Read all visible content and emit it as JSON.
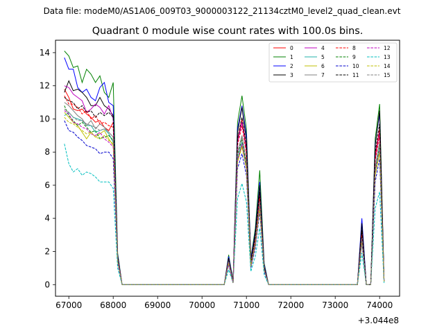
{
  "suptitle": "Data file: modeM0/AS1A06_009T03_9000003122_21134cztM0_level2_quad_clean.evt",
  "chart_data": {
    "type": "line",
    "title": "Quadrant 0 module wise count rates with 100.0s bins.",
    "xlabel": "",
    "ylabel": "",
    "x_offset_label": "+3.044e8",
    "x_offset": 304400000,
    "xlim": [
      66700,
      74450
    ],
    "ylim": [
      -0.7,
      14.75
    ],
    "xticks": [
      67000,
      68000,
      69000,
      70000,
      71000,
      72000,
      73000,
      74000
    ],
    "yticks": [
      0,
      2,
      4,
      6,
      8,
      10,
      12,
      14
    ],
    "grid": false,
    "legend_position": "top-right",
    "x": [
      66900,
      67000,
      67100,
      67200,
      67300,
      67400,
      67500,
      67600,
      67700,
      67800,
      67900,
      68000,
      68100,
      68200,
      68300,
      68400,
      68500,
      68600,
      68700,
      68800,
      68900,
      69000,
      69100,
      69200,
      69300,
      69400,
      69500,
      69600,
      69700,
      69800,
      69900,
      70000,
      70100,
      70200,
      70300,
      70400,
      70500,
      70600,
      70700,
      70800,
      70900,
      71000,
      71100,
      71200,
      71300,
      71400,
      71500,
      71600,
      71700,
      71800,
      71900,
      72000,
      72100,
      72200,
      72300,
      72400,
      72500,
      72600,
      72700,
      72800,
      72900,
      73000,
      73100,
      73200,
      73300,
      73400,
      73500,
      73600,
      73700,
      73800,
      73900,
      74000,
      74100
    ],
    "series": [
      {
        "name": "0",
        "color": "#ff0000",
        "dash": "solid",
        "values": [
          11.8,
          11.3,
          10.6,
          10.5,
          10.6,
          10.3,
          10.1,
          9.8,
          9.9,
          9.5,
          9.3,
          9.8,
          1.6,
          0,
          0,
          0,
          0,
          0,
          0,
          0,
          0,
          0,
          0,
          0,
          0,
          0,
          0,
          0,
          0,
          0,
          0,
          0,
          0,
          0,
          0,
          0,
          0,
          1.5,
          0.1,
          8.8,
          10.0,
          8.2,
          1.3,
          2.8,
          5.6,
          1.0,
          0,
          0,
          0,
          0,
          0,
          0,
          0,
          0,
          0,
          0,
          0,
          0,
          0,
          0,
          0,
          0,
          0,
          0,
          0,
          0,
          0,
          3.2,
          0,
          0,
          7.8,
          9.4,
          0.2
        ]
      },
      {
        "name": "1",
        "color": "#008000",
        "dash": "solid",
        "values": [
          14.1,
          13.8,
          13.1,
          13.2,
          12.2,
          13.0,
          12.7,
          12.2,
          12.6,
          11.6,
          11.3,
          12.2,
          1.9,
          0,
          0,
          0,
          0,
          0,
          0,
          0,
          0,
          0,
          0,
          0,
          0,
          0,
          0,
          0,
          0,
          0,
          0,
          0,
          0,
          0,
          0,
          0,
          0,
          1.8,
          0.2,
          9.8,
          11.4,
          9.4,
          1.6,
          3.4,
          6.9,
          1.3,
          0,
          0,
          0,
          0,
          0,
          0,
          0,
          0,
          0,
          0,
          0,
          0,
          0,
          0,
          0,
          0,
          0,
          0,
          0,
          0,
          0,
          3.8,
          0,
          0,
          8.8,
          10.9,
          0.3
        ]
      },
      {
        "name": "2",
        "color": "#0000ff",
        "dash": "solid",
        "values": [
          13.7,
          13.0,
          13.0,
          11.9,
          11.6,
          11.8,
          11.3,
          11.1,
          11.9,
          12.2,
          11.0,
          10.8,
          1.8,
          0,
          0,
          0,
          0,
          0,
          0,
          0,
          0,
          0,
          0,
          0,
          0,
          0,
          0,
          0,
          0,
          0,
          0,
          0,
          0,
          0,
          0,
          0,
          0,
          1.7,
          0.2,
          9.4,
          10.8,
          9.0,
          1.5,
          3.2,
          6.2,
          1.2,
          0,
          0,
          0,
          0,
          0,
          0,
          0,
          0,
          0,
          0,
          0,
          0,
          0,
          0,
          0,
          0,
          0,
          0,
          0,
          0,
          0,
          4.0,
          0,
          0,
          8.5,
          10.3,
          0.3
        ]
      },
      {
        "name": "3",
        "color": "#000000",
        "dash": "solid",
        "values": [
          11.6,
          12.3,
          11.7,
          11.8,
          11.6,
          11.3,
          10.8,
          10.8,
          11.3,
          10.8,
          10.6,
          10.2,
          1.7,
          0,
          0,
          0,
          0,
          0,
          0,
          0,
          0,
          0,
          0,
          0,
          0,
          0,
          0,
          0,
          0,
          0,
          0,
          0,
          0,
          0,
          0,
          0,
          0,
          1.6,
          0.2,
          9.2,
          10.7,
          8.7,
          1.4,
          3.1,
          6.0,
          1.1,
          0,
          0,
          0,
          0,
          0,
          0,
          0,
          0,
          0,
          0,
          0,
          0,
          0,
          0,
          0,
          0,
          0,
          0,
          0,
          0,
          0,
          3.7,
          0,
          0,
          8.4,
          10.5,
          0.2
        ]
      },
      {
        "name": "4",
        "color": "#bf00bf",
        "dash": "solid",
        "values": [
          12.0,
          11.9,
          11.5,
          11.3,
          11.1,
          10.4,
          10.6,
          10.9,
          10.7,
          10.3,
          10.8,
          10.0,
          1.6,
          0,
          0,
          0,
          0,
          0,
          0,
          0,
          0,
          0,
          0,
          0,
          0,
          0,
          0,
          0,
          0,
          0,
          0,
          0,
          0,
          0,
          0,
          0,
          0,
          1.5,
          0.1,
          8.6,
          9.8,
          8.1,
          1.3,
          2.8,
          5.4,
          1.0,
          0,
          0,
          0,
          0,
          0,
          0,
          0,
          0,
          0,
          0,
          0,
          0,
          0,
          0,
          0,
          0,
          0,
          0,
          0,
          0,
          0,
          3.1,
          0,
          0,
          7.6,
          9.2,
          0.2
        ]
      },
      {
        "name": "5",
        "color": "#20b2aa",
        "dash": "solid",
        "values": [
          10.2,
          10.4,
          10.1,
          10.0,
          9.9,
          9.6,
          9.6,
          9.2,
          9.3,
          9.4,
          9.1,
          8.6,
          1.4,
          0,
          0,
          0,
          0,
          0,
          0,
          0,
          0,
          0,
          0,
          0,
          0,
          0,
          0,
          0,
          0,
          0,
          0,
          0,
          0,
          0,
          0,
          0,
          0,
          1.3,
          0.1,
          7.6,
          8.6,
          7.1,
          1.1,
          2.5,
          4.8,
          0.9,
          0,
          0,
          0,
          0,
          0,
          0,
          0,
          0,
          0,
          0,
          0,
          0,
          0,
          0,
          0,
          0,
          0,
          0,
          0,
          0,
          0,
          2.7,
          0,
          0,
          6.8,
          8.2,
          0.2
        ]
      },
      {
        "name": "6",
        "color": "#bfbf00",
        "dash": "solid",
        "values": [
          10.4,
          10.1,
          9.8,
          9.6,
          9.2,
          8.8,
          9.2,
          8.9,
          9.1,
          9.3,
          8.8,
          8.4,
          1.4,
          0,
          0,
          0,
          0,
          0,
          0,
          0,
          0,
          0,
          0,
          0,
          0,
          0,
          0,
          0,
          0,
          0,
          0,
          0,
          0,
          0,
          0,
          0,
          0,
          1.3,
          0.1,
          7.4,
          8.4,
          7.0,
          1.1,
          2.4,
          4.7,
          0.9,
          0,
          0,
          0,
          0,
          0,
          0,
          0,
          0,
          0,
          0,
          0,
          0,
          0,
          0,
          0,
          0,
          0,
          0,
          0,
          0,
          0,
          2.6,
          0,
          0,
          6.6,
          8.0,
          0.2
        ]
      },
      {
        "name": "7",
        "color": "#808080",
        "dash": "solid",
        "values": [
          11.0,
          10.8,
          10.5,
          10.2,
          10.0,
          9.6,
          9.9,
          9.4,
          9.7,
          9.5,
          9.2,
          8.9,
          1.5,
          0,
          0,
          0,
          0,
          0,
          0,
          0,
          0,
          0,
          0,
          0,
          0,
          0,
          0,
          0,
          0,
          0,
          0,
          0,
          0,
          0,
          0,
          0,
          0,
          1.4,
          0.1,
          8.0,
          9.0,
          7.5,
          1.2,
          2.6,
          5.0,
          0.9,
          0,
          0,
          0,
          0,
          0,
          0,
          0,
          0,
          0,
          0,
          0,
          0,
          0,
          0,
          0,
          0,
          0,
          0,
          0,
          0,
          0,
          2.8,
          0,
          0,
          7.1,
          8.6,
          0.2
        ]
      },
      {
        "name": "8",
        "color": "#ff0000",
        "dash": "dashed",
        "values": [
          11.4,
          10.9,
          10.9,
          10.7,
          10.3,
          10.5,
          10.0,
          10.2,
          9.7,
          9.8,
          9.6,
          9.5,
          1.6,
          0,
          0,
          0,
          0,
          0,
          0,
          0,
          0,
          0,
          0,
          0,
          0,
          0,
          0,
          0,
          0,
          0,
          0,
          0,
          0,
          0,
          0,
          0,
          0,
          1.5,
          0.1,
          8.4,
          9.6,
          7.9,
          1.2,
          2.7,
          5.3,
          1.0,
          0,
          0,
          0,
          0,
          0,
          0,
          0,
          0,
          0,
          0,
          0,
          0,
          0,
          0,
          0,
          0,
          0,
          0,
          0,
          0,
          0,
          3.0,
          0,
          0,
          7.5,
          9.0,
          0.2
        ]
      },
      {
        "name": "9",
        "color": "#008000",
        "dash": "dashed",
        "values": [
          10.8,
          10.2,
          9.9,
          9.6,
          9.8,
          9.5,
          9.2,
          9.3,
          8.8,
          8.9,
          9.0,
          8.7,
          1.4,
          0,
          0,
          0,
          0,
          0,
          0,
          0,
          0,
          0,
          0,
          0,
          0,
          0,
          0,
          0,
          0,
          0,
          0,
          0,
          0,
          0,
          0,
          0,
          0,
          1.3,
          0.1,
          7.8,
          8.8,
          7.2,
          1.1,
          2.5,
          4.9,
          0.9,
          0,
          0,
          0,
          0,
          0,
          0,
          0,
          0,
          0,
          0,
          0,
          0,
          0,
          0,
          0,
          0,
          0,
          0,
          0,
          0,
          0,
          2.8,
          0,
          0,
          6.9,
          8.4,
          0.2
        ]
      },
      {
        "name": "10",
        "color": "#0000cd",
        "dash": "dashed",
        "values": [
          9.9,
          9.3,
          9.2,
          8.9,
          8.7,
          8.4,
          8.3,
          8.2,
          7.9,
          8.0,
          8.0,
          7.6,
          1.3,
          0,
          0,
          0,
          0,
          0,
          0,
          0,
          0,
          0,
          0,
          0,
          0,
          0,
          0,
          0,
          0,
          0,
          0,
          0,
          0,
          0,
          0,
          0,
          0,
          1.2,
          0.1,
          7.0,
          7.9,
          6.6,
          1.0,
          2.2,
          4.4,
          0.8,
          0,
          0,
          0,
          0,
          0,
          0,
          0,
          0,
          0,
          0,
          0,
          0,
          0,
          0,
          0,
          0,
          0,
          0,
          0,
          0,
          0,
          2.5,
          0,
          0,
          6.2,
          7.6,
          0.2
        ]
      },
      {
        "name": "11",
        "color": "#000000",
        "dash": "dashed",
        "values": [
          11.3,
          11.1,
          11.0,
          10.6,
          10.8,
          10.4,
          10.5,
          10.1,
          10.4,
          10.2,
          10.4,
          10.1,
          1.7,
          0,
          0,
          0,
          0,
          0,
          0,
          0,
          0,
          0,
          0,
          0,
          0,
          0,
          0,
          0,
          0,
          0,
          0,
          0,
          0,
          0,
          0,
          0,
          0,
          1.5,
          0.2,
          8.8,
          10.1,
          8.3,
          1.3,
          2.9,
          5.6,
          1.0,
          0,
          0,
          0,
          0,
          0,
          0,
          0,
          0,
          0,
          0,
          0,
          0,
          0,
          0,
          0,
          0,
          0,
          0,
          0,
          0,
          0,
          3.3,
          0,
          0,
          8.0,
          9.7,
          0.2
        ]
      },
      {
        "name": "12",
        "color": "#bf00bf",
        "dash": "dashed",
        "values": [
          10.5,
          10.3,
          9.8,
          9.7,
          9.5,
          9.4,
          9.1,
          9.0,
          9.2,
          8.8,
          8.6,
          8.3,
          1.4,
          0,
          0,
          0,
          0,
          0,
          0,
          0,
          0,
          0,
          0,
          0,
          0,
          0,
          0,
          0,
          0,
          0,
          0,
          0,
          0,
          0,
          0,
          0,
          0,
          1.3,
          0.1,
          7.5,
          8.5,
          7.0,
          1.1,
          2.4,
          4.7,
          0.9,
          0,
          0,
          0,
          0,
          0,
          0,
          0,
          0,
          0,
          0,
          0,
          0,
          0,
          0,
          0,
          0,
          0,
          0,
          0,
          0,
          0,
          2.7,
          0,
          0,
          6.7,
          8.1,
          0.2
        ]
      },
      {
        "name": "13",
        "color": "#00bfbf",
        "dash": "dashed",
        "values": [
          8.5,
          7.3,
          6.8,
          7.0,
          6.6,
          6.8,
          6.7,
          6.5,
          6.2,
          6.2,
          6.2,
          5.8,
          1.0,
          0,
          0,
          0,
          0,
          0,
          0,
          0,
          0,
          0,
          0,
          0,
          0,
          0,
          0,
          0,
          0,
          0,
          0,
          0,
          0,
          0,
          0,
          0,
          0,
          0.9,
          0.1,
          5.2,
          6.1,
          5.0,
          0.8,
          1.7,
          3.4,
          0.6,
          0,
          0,
          0,
          0,
          0,
          0,
          0,
          0,
          0,
          0,
          0,
          0,
          0,
          0,
          0,
          0,
          0,
          0,
          0,
          0,
          0,
          1.9,
          0,
          0,
          4.6,
          5.6,
          0.1
        ]
      },
      {
        "name": "14",
        "color": "#bfbf00",
        "dash": "dashed",
        "values": [
          10.1,
          9.8,
          9.7,
          9.5,
          9.3,
          9.1,
          9.2,
          8.9,
          8.8,
          9.0,
          8.7,
          8.5,
          1.4,
          0,
          0,
          0,
          0,
          0,
          0,
          0,
          0,
          0,
          0,
          0,
          0,
          0,
          0,
          0,
          0,
          0,
          0,
          0,
          0,
          0,
          0,
          0,
          0,
          1.3,
          0.1,
          7.4,
          8.3,
          7.0,
          1.1,
          2.4,
          4.6,
          0.9,
          0,
          0,
          0,
          0,
          0,
          0,
          0,
          0,
          0,
          0,
          0,
          0,
          0,
          0,
          0,
          0,
          0,
          0,
          0,
          0,
          0,
          2.6,
          0,
          0,
          6.6,
          8.0,
          0.2
        ]
      },
      {
        "name": "15",
        "color": "#808080",
        "dash": "dashed",
        "values": [
          10.6,
          10.4,
          10.1,
          9.9,
          9.9,
          9.7,
          9.6,
          9.5,
          9.3,
          9.4,
          9.2,
          8.9,
          1.5,
          0,
          0,
          0,
          0,
          0,
          0,
          0,
          0,
          0,
          0,
          0,
          0,
          0,
          0,
          0,
          0,
          0,
          0,
          0,
          0,
          0,
          0,
          0,
          0,
          1.4,
          0.1,
          7.9,
          8.9,
          7.4,
          1.2,
          2.6,
          5.0,
          0.9,
          0,
          0,
          0,
          0,
          0,
          0,
          0,
          0,
          0,
          0,
          0,
          0,
          0,
          0,
          0,
          0,
          0,
          0,
          0,
          0,
          0,
          2.8,
          0,
          0,
          7.0,
          8.5,
          0.2
        ]
      }
    ]
  }
}
